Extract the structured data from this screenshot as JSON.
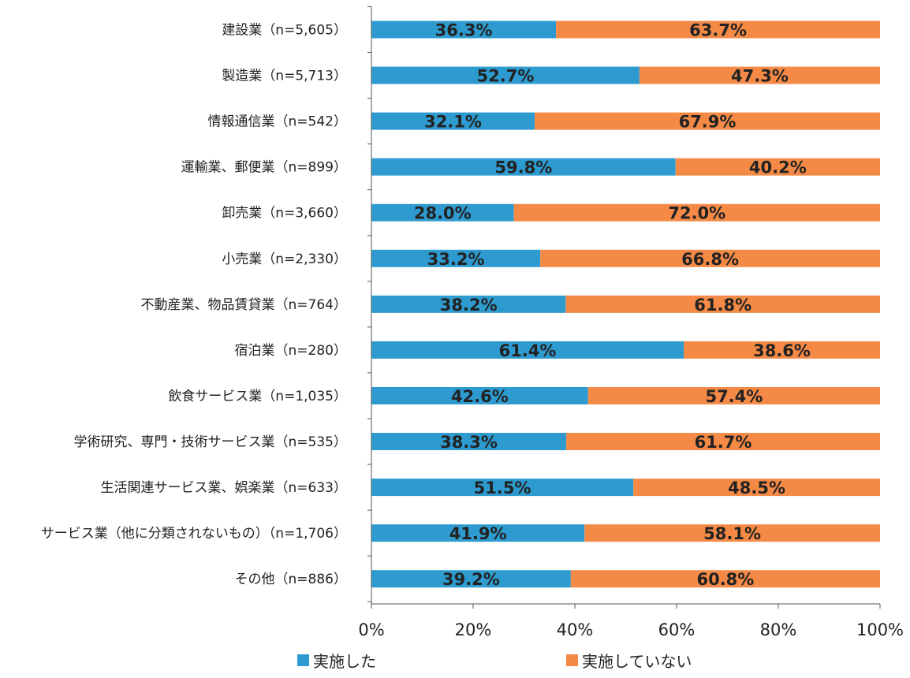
{
  "chart_data": {
    "type": "bar",
    "orientation": "horizontal",
    "stacked": true,
    "percent_stacked": true,
    "categories": [
      "建設業（n=5,605）",
      "製造業（n=5,713）",
      "情報通信業（n=542）",
      "運輸業、郵便業（n=899）",
      "卸売業（n=3,660）",
      "小売業（n=2,330）",
      "不動産業、物品賃貸業（n=764）",
      "宿泊業（n=280）",
      "飲食サービス業（n=1,035）",
      "学術研究、専門・技術サービス業（n=535）",
      "生活関連サービス業、娯楽業（n=633）",
      "サービス業（他に分類されないもの）（n=1,706）",
      "その他（n=886）"
    ],
    "series": [
      {
        "name": "実施した",
        "color": "#2e9bd0",
        "values": [
          36.3,
          52.7,
          32.1,
          59.8,
          28.0,
          33.2,
          38.2,
          61.4,
          42.6,
          38.3,
          51.5,
          41.9,
          39.2
        ],
        "labels": [
          "36.3%",
          "52.7%",
          "32.1%",
          "59.8%",
          "28.0%",
          "33.2%",
          "38.2%",
          "61.4%",
          "42.6%",
          "38.3%",
          "51.5%",
          "41.9%",
          "39.2%"
        ]
      },
      {
        "name": "実施していない",
        "color": "#f58a47",
        "values": [
          63.7,
          47.3,
          67.9,
          40.2,
          72.0,
          66.8,
          61.8,
          38.6,
          57.4,
          61.7,
          48.5,
          58.1,
          60.8
        ],
        "labels": [
          "63.7%",
          "47.3%",
          "67.9%",
          "40.2%",
          "72.0%",
          "66.8%",
          "61.8%",
          "38.6%",
          "57.4%",
          "61.7%",
          "48.5%",
          "58.1%",
          "60.8%"
        ]
      }
    ],
    "xaxis": {
      "range": [
        0,
        100
      ],
      "ticks": [
        0,
        20,
        40,
        60,
        80,
        100
      ],
      "tick_labels": [
        "0%",
        "20%",
        "40%",
        "60%",
        "80%",
        "100%"
      ]
    },
    "title": "",
    "xlabel": "",
    "ylabel": "",
    "grid": false,
    "legend_position": "bottom"
  }
}
